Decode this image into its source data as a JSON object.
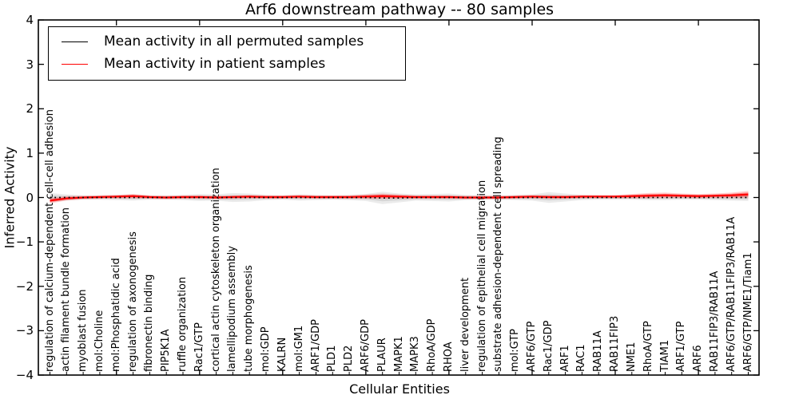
{
  "title": "Arf6 downstream pathway -- 80 samples",
  "axes": {
    "x_label": "Cellular Entities",
    "y_label": "Inferred Activity",
    "y_tick_labels": [
      "4",
      "3",
      "2",
      "1",
      "0",
      "−1",
      "−2",
      "−3",
      "−4"
    ]
  },
  "legend": {
    "items": [
      {
        "label": "Mean activity in all permuted samples",
        "color": "#000000"
      },
      {
        "label": "Mean activity in patient samples",
        "color": "#ff0000"
      }
    ]
  },
  "chart_data": {
    "type": "line",
    "title": "Arf6 downstream pathway -- 80 samples",
    "xlabel": "Cellular Entities",
    "ylabel": "Inferred Activity",
    "ylim": [
      -4,
      4
    ],
    "grid": false,
    "legend_position": "upper left",
    "categories": [
      "regulation of calcium-dependent cell-cell adhesion",
      "actin filament bundle formation",
      "myoblast fusion",
      "mol:Choline",
      "mol:Phosphatidic acid",
      "regulation of axonogenesis",
      "fibronectin binding",
      "PIP5K1A",
      "ruffle organization",
      "Rac1/GTP",
      "cortical actin cytoskeleton organization",
      "lamellipodium assembly",
      "tube morphogenesis",
      "mol:GDP",
      "KALRN",
      "mol:GM1",
      "ARF1/GDP",
      "PLD1",
      "PLD2",
      "ARF6/GDP",
      "PLAUR",
      "MAPK1",
      "MAPK3",
      "RhoA/GDP",
      "RHOA",
      "liver development",
      "regulation of epithelial cell migration",
      "substrate adhesion-dependent cell spreading",
      "mol:GTP",
      "ARF6/GTP",
      "Rac1/GDP",
      "ARF1",
      "RAC1",
      "RAB11A",
      "RAB11FIP3",
      "NME1",
      "RhoA/GTP",
      "TIAM1",
      "ARF1/GTP",
      "ARF6",
      "RAB11FIP3/RAB11A",
      "ARF6/GTP/RAB11FIP3/RAB11A",
      "ARF6/GTP/NME1/Tiam1"
    ],
    "series": [
      {
        "name": "Mean activity in all permuted samples",
        "color": "#000000",
        "line_style": "dotted",
        "values": [
          0,
          0,
          0,
          0,
          0,
          0,
          0,
          0,
          0,
          0,
          0,
          0,
          0,
          0,
          0,
          0,
          0,
          0,
          0,
          0,
          -0.01,
          -0.01,
          0,
          0,
          0,
          0,
          0,
          0,
          0,
          0,
          0,
          0,
          0,
          0,
          0,
          0,
          0,
          0,
          0,
          0,
          0,
          0,
          0
        ],
        "band_halfwidth": [
          0.1,
          0.07,
          0.05,
          0.05,
          0.06,
          0.07,
          0.05,
          0.05,
          0.06,
          0.08,
          0.07,
          0.1,
          0.09,
          0.06,
          0.05,
          0.07,
          0.06,
          0.05,
          0.06,
          0.08,
          0.14,
          0.1,
          0.07,
          0.08,
          0.09,
          0.06,
          0.05,
          0.05,
          0.06,
          0.07,
          0.12,
          0.09,
          0.06,
          0.05,
          0.05,
          0.05,
          0.06,
          0.06,
          0.05,
          0.05,
          0.06,
          0.07,
          0.08
        ],
        "band_color": "#808080"
      },
      {
        "name": "Mean activity in patient samples",
        "color": "#ff0000",
        "line_style": "solid",
        "values": [
          -0.07,
          -0.02,
          0,
          0.01,
          0.02,
          0.03,
          0.01,
          0,
          0.01,
          0.01,
          0,
          0.01,
          0.02,
          0.01,
          0.01,
          0.02,
          0.01,
          0.01,
          0.01,
          0.02,
          0.03,
          0.02,
          0.01,
          0.01,
          0.01,
          0,
          0,
          0,
          0.01,
          0.02,
          0.01,
          0.01,
          0.02,
          0.02,
          0.02,
          0.03,
          0.04,
          0.05,
          0.04,
          0.03,
          0.04,
          0.05,
          0.07
        ],
        "band_halfwidth": [
          0.06,
          0.05,
          0.04,
          0.04,
          0.04,
          0.05,
          0.04,
          0.04,
          0.04,
          0.04,
          0.04,
          0.04,
          0.04,
          0.04,
          0.04,
          0.04,
          0.04,
          0.04,
          0.04,
          0.05,
          0.06,
          0.05,
          0.04,
          0.04,
          0.04,
          0.04,
          0.04,
          0.04,
          0.04,
          0.04,
          0.04,
          0.04,
          0.04,
          0.04,
          0.04,
          0.05,
          0.06,
          0.06,
          0.05,
          0.05,
          0.05,
          0.06,
          0.08
        ],
        "band_color": "#ff0000"
      }
    ],
    "x_major_tick_indices": [
      4,
      9,
      14,
      19,
      24,
      29,
      34,
      39
    ]
  }
}
